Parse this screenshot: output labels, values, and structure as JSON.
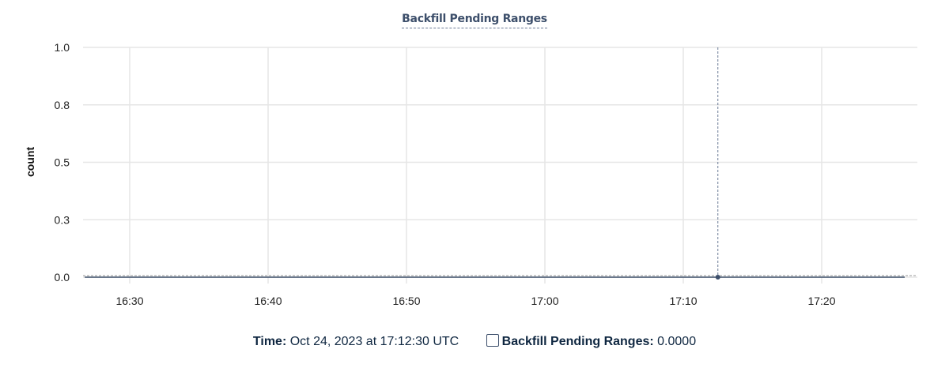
{
  "chart_data": {
    "type": "line",
    "title": "Backfill Pending Ranges",
    "xlabel": "",
    "ylabel": "count",
    "x_ticks": [
      "16:30",
      "16:40",
      "16:50",
      "17:00",
      "17:10",
      "17:20"
    ],
    "y_ticks": [
      {
        "value": 0,
        "label": "0.0"
      },
      {
        "value": 0.25,
        "label": "0.3"
      },
      {
        "value": 0.5,
        "label": "0.5"
      },
      {
        "value": 0.75,
        "label": "0.8"
      },
      {
        "value": 1,
        "label": "1.0"
      }
    ],
    "xlim": [
      "16:26:40",
      "17:27:30"
    ],
    "ylim": [
      0,
      1
    ],
    "grid": true,
    "series": [
      {
        "name": "Backfill Pending Ranges",
        "color": "#3d4f6b",
        "x": [
          "16:26:45",
          "17:26:00"
        ],
        "y": [
          0,
          0
        ]
      }
    ],
    "cursor": {
      "time": "17:12:30",
      "value": 0
    }
  },
  "legend": {
    "time_label": "Time:",
    "time_value": "Oct 24, 2023 at 17:12:30 UTC",
    "series_label": "Backfill Pending Ranges:",
    "series_value": "0.0000"
  }
}
